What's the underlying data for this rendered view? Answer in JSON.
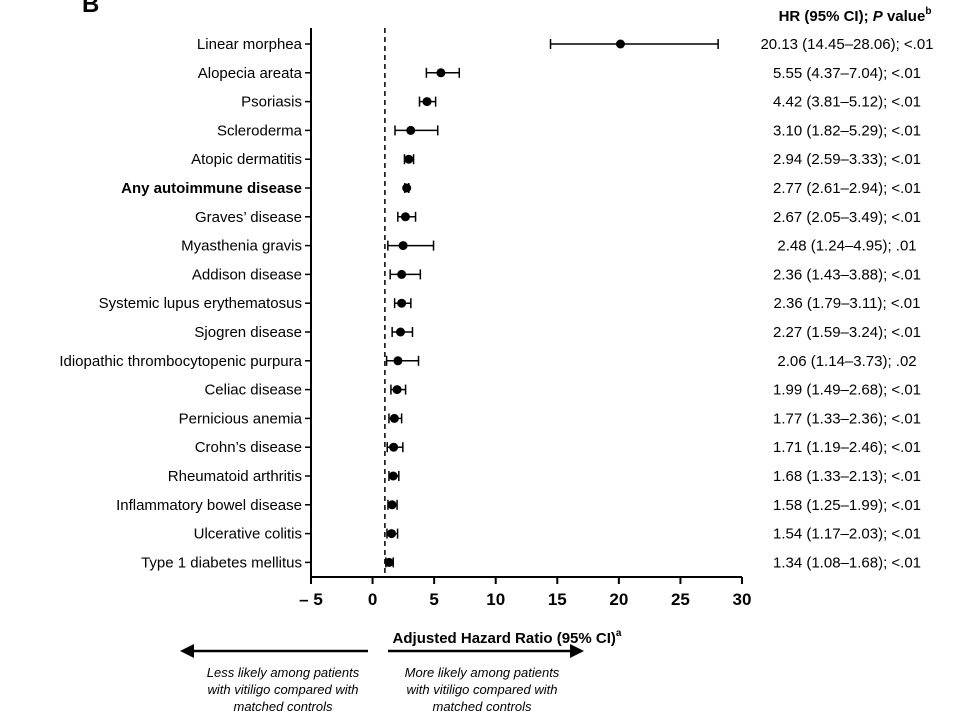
{
  "panel_label": "B",
  "chart_data": {
    "type": "forest",
    "column_header": {
      "main": "HR (95% CI); ",
      "italic": "P",
      "rest": " value",
      "sup": "b"
    },
    "xlabel": {
      "main": "Adjusted Hazard Ratio (95% CI)",
      "sup": "a"
    },
    "xlim": [
      -5,
      30
    ],
    "xticks": [
      -5,
      0,
      5,
      10,
      15,
      20,
      25,
      30
    ],
    "xtick_labels": [
      "– 5",
      "0",
      "5",
      "10",
      "15",
      "20",
      "25",
      "30"
    ],
    "reference_line": 1,
    "rows": [
      {
        "label": "Linear morphea",
        "hr": 20.13,
        "lo": 14.45,
        "hi": 28.06,
        "text": "20.13 (14.45–28.06); <.01"
      },
      {
        "label": "Alopecia areata",
        "hr": 5.55,
        "lo": 4.37,
        "hi": 7.04,
        "text": "5.55 (4.37–7.04); <.01"
      },
      {
        "label": "Psoriasis",
        "hr": 4.42,
        "lo": 3.81,
        "hi": 5.12,
        "text": "4.42 (3.81–5.12); <.01"
      },
      {
        "label": "Scleroderma",
        "hr": 3.1,
        "lo": 1.82,
        "hi": 5.29,
        "text": "3.10 (1.82–5.29); <.01"
      },
      {
        "label": "Atopic dermatitis",
        "hr": 2.94,
        "lo": 2.59,
        "hi": 3.33,
        "text": "2.94 (2.59–3.33); <.01"
      },
      {
        "label": "Any autoimmune disease",
        "bold": true,
        "hr": 2.77,
        "lo": 2.61,
        "hi": 2.94,
        "text": "2.77 (2.61–2.94); <.01"
      },
      {
        "label": "Graves’ disease",
        "hr": 2.67,
        "lo": 2.05,
        "hi": 3.49,
        "text": "2.67 (2.05–3.49); <.01"
      },
      {
        "label": "Myasthenia gravis",
        "hr": 2.48,
        "lo": 1.24,
        "hi": 4.95,
        "text": "2.48 (1.24–4.95); .01"
      },
      {
        "label": "Addison disease",
        "hr": 2.36,
        "lo": 1.43,
        "hi": 3.88,
        "text": "2.36 (1.43–3.88); <.01"
      },
      {
        "label": "Systemic lupus erythematosus",
        "hr": 2.36,
        "lo": 1.79,
        "hi": 3.11,
        "text": "2.36 (1.79–3.11); <.01"
      },
      {
        "label": "Sjogren disease",
        "hr": 2.27,
        "lo": 1.59,
        "hi": 3.24,
        "text": "2.27 (1.59–3.24); <.01"
      },
      {
        "label": "Idiopathic thrombocytopenic purpura",
        "hr": 2.06,
        "lo": 1.14,
        "hi": 3.73,
        "text": "2.06 (1.14–3.73); .02"
      },
      {
        "label": "Celiac disease",
        "hr": 1.99,
        "lo": 1.49,
        "hi": 2.68,
        "text": "1.99 (1.49–2.68); <.01"
      },
      {
        "label": "Pernicious anemia",
        "hr": 1.77,
        "lo": 1.33,
        "hi": 2.36,
        "text": "1.77 (1.33–2.36); <.01"
      },
      {
        "label": "Crohn’s disease",
        "hr": 1.71,
        "lo": 1.19,
        "hi": 2.46,
        "text": "1.71 (1.19–2.46); <.01"
      },
      {
        "label": "Rheumatoid arthritis",
        "hr": 1.68,
        "lo": 1.33,
        "hi": 2.13,
        "text": "1.68 (1.33–2.13); <.01"
      },
      {
        "label": "Inflammatory bowel disease",
        "hr": 1.58,
        "lo": 1.25,
        "hi": 1.99,
        "text": "1.58 (1.25–1.99); <.01"
      },
      {
        "label": "Ulcerative colitis",
        "hr": 1.54,
        "lo": 1.17,
        "hi": 2.03,
        "text": "1.54 (1.17–2.03); <.01"
      },
      {
        "label": "Type 1 diabetes mellitus",
        "hr": 1.34,
        "lo": 1.08,
        "hi": 1.68,
        "text": "1.34 (1.08–1.68); <.01"
      }
    ],
    "annotations": {
      "left": [
        "Less likely among patients",
        "with vitiligo compared with",
        "matched controls"
      ],
      "right": [
        "More likely among patients",
        "with vitiligo compared with",
        "matched controls"
      ]
    }
  }
}
